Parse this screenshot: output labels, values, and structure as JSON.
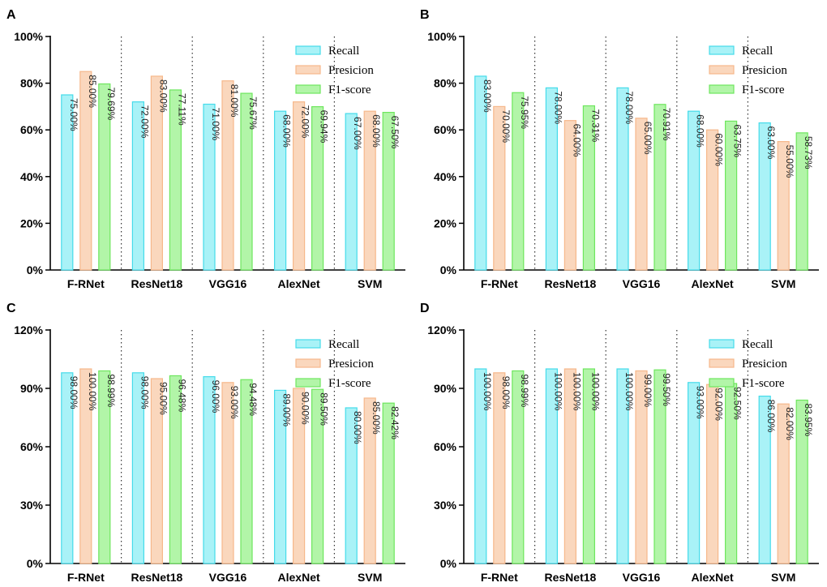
{
  "chart_data": [
    {
      "panel": "A",
      "type": "bar",
      "categories": [
        "F-RNet",
        "ResNet18",
        "VGG16",
        "AlexNet",
        "SVM"
      ],
      "series": [
        {
          "name": "Recall",
          "values": [
            75,
            72,
            71,
            68,
            67
          ],
          "labels": [
            "75.00%",
            "72.00%",
            "71.00%",
            "68.00%",
            "67.00%"
          ]
        },
        {
          "name": "Presicion",
          "values": [
            85,
            83,
            81,
            72,
            68
          ],
          "labels": [
            "85.00%",
            "83.00%",
            "81.00%",
            "72.00%",
            "68.00%"
          ]
        },
        {
          "name": "F1-score",
          "values": [
            79.69,
            77.11,
            75.67,
            69.94,
            67.5
          ],
          "labels": [
            "79.69%",
            "77.11%",
            "75.67%",
            "69.94%",
            "67.50%"
          ]
        }
      ],
      "yticks": [
        0,
        20,
        40,
        60,
        80,
        100
      ],
      "ytick_labels": [
        "0%",
        "20%",
        "40%",
        "60%",
        "80%",
        "100%"
      ],
      "ylim": [
        0,
        100
      ],
      "legend": "top-right",
      "colors": {
        "fill": [
          "#a9f2f7",
          "#fad7bd",
          "#b2f5a8"
        ],
        "stroke": [
          "#45dbea",
          "#f6b88b",
          "#6ee65e"
        ]
      }
    },
    {
      "panel": "B",
      "type": "bar",
      "categories": [
        "F-RNet",
        "ResNet18",
        "VGG16",
        "AlexNet",
        "SVM"
      ],
      "series": [
        {
          "name": "Recall",
          "values": [
            83,
            78,
            78,
            68,
            63
          ],
          "labels": [
            "83.00%",
            "78.00%",
            "78.00%",
            "68.00%",
            "63.00%"
          ]
        },
        {
          "name": "Presicion",
          "values": [
            70,
            64,
            65,
            60,
            55
          ],
          "labels": [
            "70.00%",
            "64.00%",
            "65.00%",
            "60.00%",
            "55.00%"
          ]
        },
        {
          "name": "F1-score",
          "values": [
            75.95,
            70.31,
            70.91,
            63.75,
            58.73
          ],
          "labels": [
            "75.95%",
            "70.31%",
            "70.91%",
            "63.75%",
            "58.73%"
          ]
        }
      ],
      "yticks": [
        0,
        20,
        40,
        60,
        80,
        100
      ],
      "ytick_labels": [
        "0%",
        "20%",
        "40%",
        "60%",
        "80%",
        "100%"
      ],
      "ylim": [
        0,
        100
      ],
      "legend": "top-right",
      "colors": {
        "fill": [
          "#a9f2f7",
          "#fad7bd",
          "#b2f5a8"
        ],
        "stroke": [
          "#45dbea",
          "#f6b88b",
          "#6ee65e"
        ]
      }
    },
    {
      "panel": "C",
      "type": "bar",
      "categories": [
        "F-RNet",
        "ResNet18",
        "VGG16",
        "AlexNet",
        "SVM"
      ],
      "series": [
        {
          "name": "Recall",
          "values": [
            98,
            98,
            96,
            89,
            80
          ],
          "labels": [
            "98.00%",
            "98.00%",
            "96.00%",
            "89.00%",
            "80.00%"
          ]
        },
        {
          "name": "Presicion",
          "values": [
            100,
            95,
            93,
            90,
            85
          ],
          "labels": [
            "100.00%",
            "95.00%",
            "93.00%",
            "90.00%",
            "85.00%"
          ]
        },
        {
          "name": "F1-score",
          "values": [
            98.99,
            96.48,
            94.48,
            89.5,
            82.42
          ],
          "labels": [
            "98.99%",
            "96.48%",
            "94.48%",
            "89.50%",
            "82.42%"
          ]
        }
      ],
      "yticks": [
        0,
        30,
        60,
        90,
        120
      ],
      "ytick_labels": [
        "0%",
        "30%",
        "60%",
        "90%",
        "120%"
      ],
      "ylim": [
        0,
        120
      ],
      "legend": "top-right",
      "colors": {
        "fill": [
          "#a9f2f7",
          "#fad7bd",
          "#b2f5a8"
        ],
        "stroke": [
          "#45dbea",
          "#f6b88b",
          "#6ee65e"
        ]
      }
    },
    {
      "panel": "D",
      "type": "bar",
      "categories": [
        "F-RNet",
        "ResNet18",
        "VGG16",
        "AlexNet",
        "SVM"
      ],
      "series": [
        {
          "name": "Recall",
          "values": [
            100,
            100,
            100,
            93,
            86
          ],
          "labels": [
            "100.00%",
            "100.00%",
            "100.00%",
            "93.00%",
            "86.00%"
          ]
        },
        {
          "name": "Presicion",
          "values": [
            98,
            100,
            99,
            92,
            82
          ],
          "labels": [
            "98.00%",
            "100.00%",
            "99.00%",
            "92.00%",
            "82.00%"
          ]
        },
        {
          "name": "F1-score",
          "values": [
            98.99,
            100,
            99.5,
            92.5,
            83.95
          ],
          "labels": [
            "98.99%",
            "100.00%",
            "99.50%",
            "92.50%",
            "83.95%"
          ]
        }
      ],
      "yticks": [
        0,
        30,
        60,
        90,
        120
      ],
      "ytick_labels": [
        "0%",
        "30%",
        "60%",
        "90%",
        "120%"
      ],
      "ylim": [
        0,
        120
      ],
      "legend": "top-right",
      "colors": {
        "fill": [
          "#a9f2f7",
          "#fad7bd",
          "#b2f5a8"
        ],
        "stroke": [
          "#45dbea",
          "#f6b88b",
          "#6ee65e"
        ]
      }
    }
  ]
}
